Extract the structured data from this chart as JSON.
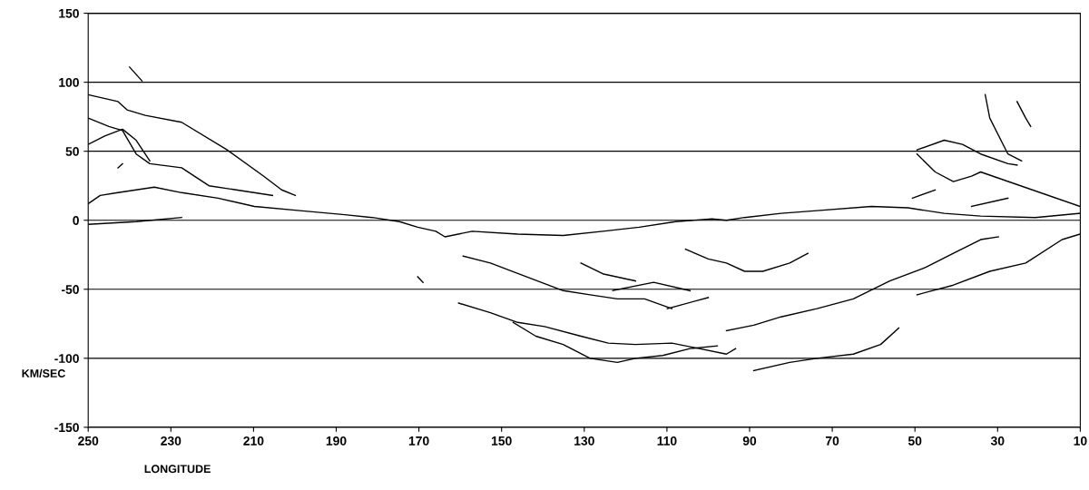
{
  "chart_data": {
    "type": "line",
    "xlabel": "LONGITUDE",
    "ylabel": "KM/SEC",
    "xlim": [
      250,
      10
    ],
    "xticks": [
      250,
      230,
      210,
      190,
      170,
      150,
      130,
      110,
      90,
      70,
      50,
      30,
      10
    ],
    "ylim": [
      -150,
      150
    ],
    "yticks": [
      -150,
      -100,
      -50,
      0,
      50,
      100,
      150
    ],
    "grid": "y",
    "legend": false,
    "marker": "none",
    "line_style": "solid",
    "series": [
      {
        "color": "#000000",
        "x": [
          240,
          237
        ],
        "values": [
          111,
          101
        ]
      },
      {
        "color": "#000000",
        "x": [
          250,
          242.8,
          240.6,
          236.2,
          227.4,
          216.4,
          207.6,
          203.2,
          199.9
        ],
        "values": [
          91,
          86,
          80,
          76,
          71,
          51,
          32,
          22,
          18
        ]
      },
      {
        "color": "#000000",
        "x": [
          250,
          245,
          241.7,
          238.4,
          235.1,
          227.4,
          220.8,
          214.2,
          205.4
        ],
        "values": [
          74,
          68,
          65,
          48,
          41,
          38,
          25,
          22,
          18
        ]
      },
      {
        "color": "#000000",
        "x": [
          250,
          246,
          241.7,
          238.4,
          235.1
        ],
        "values": [
          55,
          61,
          66,
          58,
          43
        ]
      },
      {
        "color": "#000000",
        "x": [
          250,
          247.1,
          242.8,
          234,
          227.4,
          218.6,
          209.8,
          198.8,
          187.9,
          181.3,
          174.7,
          170.3,
          165.9,
          163.7,
          157.1,
          146.1,
          135.1,
          125.5,
          116.7,
          107.9,
          99.1,
          95.6,
          91.2,
          82.4,
          73.7,
          60.5,
          51.7,
          42.9,
          34.1,
          20.9,
          10
        ],
        "values": [
          12,
          18,
          20,
          24,
          20,
          16,
          10,
          7,
          4,
          2,
          -1,
          -5,
          -8,
          -12,
          -8,
          -10,
          -11,
          -8,
          -5,
          -1,
          1,
          0,
          2,
          5,
          7,
          10,
          9,
          5,
          3,
          2,
          5
        ]
      },
      {
        "color": "#000000",
        "x": [
          250,
          238.4,
          227.4
        ],
        "values": [
          -3,
          -1,
          2
        ]
      },
      {
        "color": "#000000",
        "x": [
          159.3,
          152.7,
          143.9,
          135.1,
          128.6,
          122,
          115.4,
          108.8
        ],
        "values": [
          -26,
          -31,
          -41,
          -51,
          -54,
          -57,
          -57,
          -64
        ]
      },
      {
        "color": "#000000",
        "x": [
          160.4,
          152.7,
          146.1,
          139.6,
          130.8,
          124.2,
          117.6,
          108.8,
          102.2,
          95.6,
          93.4
        ],
        "values": [
          -60,
          -67,
          -74,
          -77,
          -84,
          -89,
          -90,
          -89,
          -93,
          -97,
          -93
        ]
      },
      {
        "color": "#000000",
        "x": [
          147.2,
          141.7,
          135.1,
          128.6,
          122,
          117.6,
          111,
          104.4,
          97.8
        ],
        "values": [
          -74,
          -84,
          -90,
          -100,
          -103,
          -100,
          -98,
          -93,
          -91
        ]
      },
      {
        "color": "#000000",
        "x": [
          95.6,
          89,
          82.4,
          73.7,
          64.9,
          56.1,
          47.3,
          40.7,
          34.1,
          29.8
        ],
        "values": [
          -80,
          -76,
          -70,
          -64,
          -57,
          -44,
          -34,
          -24,
          -14,
          -12
        ]
      },
      {
        "color": "#000000",
        "x": [
          49.5,
          40.7,
          31.9,
          23.2,
          14.4,
          10
        ],
        "values": [
          -54,
          -47,
          -37,
          -31,
          -14,
          -10
        ]
      },
      {
        "color": "#000000",
        "x": [
          89,
          80.3,
          73.7,
          64.9,
          58.3,
          53.9
        ],
        "values": [
          -109,
          -103,
          -100,
          -97,
          -90,
          -78
        ]
      },
      {
        "color": "#000000",
        "x": [
          105.5,
          100,
          95.6,
          91.2,
          86.8,
          80.3,
          75.9
        ],
        "values": [
          -21,
          -28,
          -31,
          -37,
          -37,
          -31,
          -24
        ]
      },
      {
        "color": "#000000",
        "x": [
          49.5,
          42.9,
          38.5,
          34.1,
          27.5,
          25.3
        ],
        "values": [
          51,
          58,
          55,
          48,
          41,
          40
        ]
      },
      {
        "color": "#000000",
        "x": [
          49.5,
          45.1,
          40.7,
          36.3,
          34.1,
          10
        ],
        "values": [
          48,
          35,
          28,
          32,
          35,
          10
        ]
      },
      {
        "color": "#000000",
        "x": [
          33,
          31.9,
          27.5,
          24.2
        ],
        "values": [
          91,
          74,
          48,
          43
        ]
      },
      {
        "color": "#000000",
        "x": [
          25.3,
          23.2,
          22
        ],
        "values": [
          86,
          74,
          68
        ]
      },
      {
        "color": "#000000",
        "x": [
          50.6,
          45.1
        ],
        "values": [
          16,
          22
        ]
      },
      {
        "color": "#000000",
        "x": [
          36.3,
          27.5
        ],
        "values": [
          10,
          16
        ]
      },
      {
        "color": "#000000",
        "x": [
          130.8,
          125.3,
          117.6
        ],
        "values": [
          -31,
          -39,
          -44
        ]
      },
      {
        "color": "#000000",
        "x": [
          109.9,
          100
        ],
        "values": [
          -64,
          -56
        ]
      },
      {
        "color": "#000000",
        "x": [
          170.3,
          169
        ],
        "values": [
          -41,
          -45
        ]
      },
      {
        "color": "#000000",
        "x": [
          123.1,
          113.2,
          104.4
        ],
        "values": [
          -51,
          -45,
          -51
        ]
      },
      {
        "color": "#000000",
        "x": [
          242.8,
          241.7
        ],
        "values": [
          38,
          41
        ]
      }
    ]
  }
}
